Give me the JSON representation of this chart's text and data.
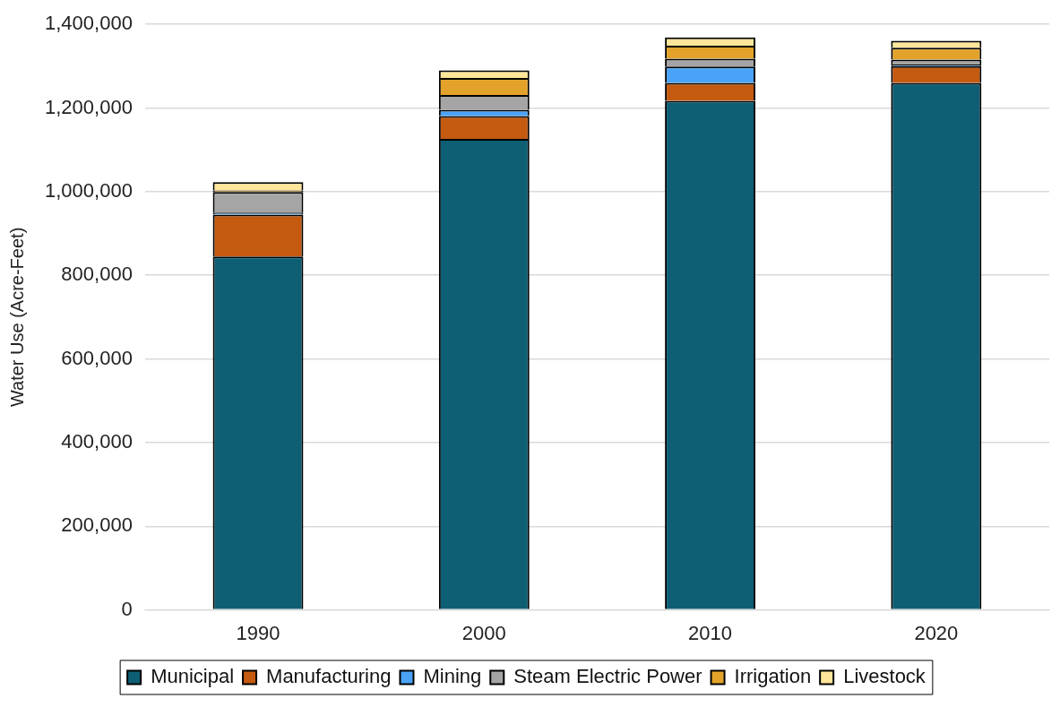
{
  "chart_data": {
    "type": "bar",
    "stacked": true,
    "ylabel": "Water Use (Acre-Feet)",
    "categories": [
      "1990",
      "2000",
      "2010",
      "2020"
    ],
    "series": [
      {
        "name": "Municipal",
        "color": "#0e5f74",
        "values": [
          845000,
          1126000,
          1217000,
          1260000
        ]
      },
      {
        "name": "Manufacturing",
        "color": "#c55a11",
        "values": [
          100000,
          55000,
          43000,
          40000
        ]
      },
      {
        "name": "Mining",
        "color": "#4aa3f7",
        "values": [
          5000,
          15000,
          39000,
          4000
        ]
      },
      {
        "name": "Steam Electric Power",
        "color": "#a5a5a5",
        "values": [
          49000,
          35000,
          19000,
          12000
        ]
      },
      {
        "name": "Irrigation",
        "color": "#e3a32b",
        "values": [
          4000,
          41000,
          31000,
          28000
        ]
      },
      {
        "name": "Livestock",
        "color": "#ffe699",
        "values": [
          20000,
          18000,
          20000,
          17000
        ]
      }
    ],
    "ylim": [
      0,
      1400000
    ],
    "yticks": [
      0,
      {
        "value": 200000,
        "label": "200,000"
      },
      {
        "value": 400000,
        "label": "400,000"
      },
      {
        "value": 600000,
        "label": "600,000"
      },
      {
        "value": 800000,
        "label": "800,000"
      },
      {
        "value": 1000000,
        "label": "1,000,000"
      },
      {
        "value": 1200000,
        "label": "1,200,000"
      },
      {
        "value": 1400000,
        "label": "1,400,000"
      }
    ],
    "grid": "y",
    "legend": "bottom"
  }
}
